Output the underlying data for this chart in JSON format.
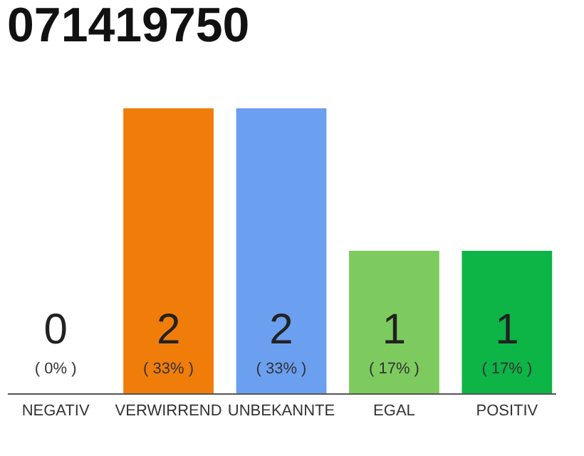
{
  "chart_data": {
    "type": "bar",
    "title": "071419750",
    "categories": [
      "NEGATIV",
      "VERWIRREND",
      "UNBEKANNTE",
      "EGAL",
      "POSITIV"
    ],
    "values": [
      0,
      2,
      2,
      1,
      1
    ],
    "colors": [
      "#9e9e9e",
      "#f07d0a",
      "#6b9ff0",
      "#7dcb5e",
      "#0db446"
    ],
    "ylim": [
      0,
      2
    ],
    "tick_labels": "x",
    "data_labels": true,
    "annotations": [
      "( 0% )",
      "( 33% )",
      "( 33% )",
      "( 17% )",
      "( 17% )"
    ]
  }
}
